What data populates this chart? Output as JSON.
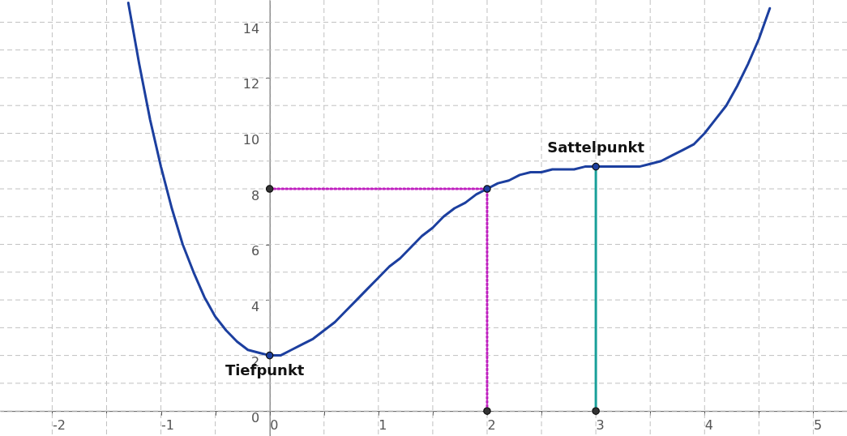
{
  "chart_data": {
    "type": "line",
    "xlim": [
      -2.48,
      5.31
    ],
    "ylim": [
      -0.9,
      14.8
    ],
    "xticks": [
      -2,
      {
        "value": -1.5,
        "label": null
      },
      -1,
      {
        "value": -0.5,
        "label": null
      },
      0,
      {
        "value": 0.5,
        "label": null
      },
      1,
      {
        "value": 1.5,
        "label": null
      },
      2,
      {
        "value": 2.5,
        "label": null
      },
      3,
      {
        "value": 3.5,
        "label": null
      },
      4,
      {
        "value": 4.5,
        "label": null
      },
      5
    ],
    "yticks": [
      0,
      {
        "value": 1,
        "label": null
      },
      2,
      {
        "value": 3,
        "label": null
      },
      4,
      {
        "value": 5,
        "label": null
      },
      6,
      {
        "value": 7,
        "label": null
      },
      8,
      {
        "value": 9,
        "label": null
      },
      10,
      {
        "value": 11,
        "label": null
      },
      12,
      {
        "value": 13,
        "label": null
      },
      14
    ],
    "grid": true,
    "marker": "none",
    "line_style": "solid",
    "series": [
      {
        "color": "#1c3f9f",
        "x": [
          -1.3,
          -1.2,
          -1.1,
          -1.0,
          -0.9,
          -0.8,
          -0.7,
          -0.6,
          -0.5,
          -0.4,
          -0.3,
          -0.2,
          -0.1,
          0,
          0.1,
          0.2,
          0.3,
          0.4,
          0.5,
          0.6,
          0.7,
          0.8,
          0.9,
          1.0,
          1.1,
          1.2,
          1.3,
          1.4,
          1.5,
          1.6,
          1.7,
          1.8,
          1.9,
          2.0,
          2.1,
          2.2,
          2.3,
          2.4,
          2.5,
          2.6,
          2.7,
          2.8,
          2.9,
          3.0,
          3.1,
          3.2,
          3.3,
          3.4,
          3.5,
          3.6,
          3.7,
          3.8,
          3.9,
          4.0,
          4.1,
          4.2,
          4.3,
          4.4,
          4.5,
          4.6
        ],
        "values": [
          14.7,
          12.5,
          10.5,
          8.8,
          7.3,
          6.0,
          5.0,
          4.1,
          3.4,
          2.9,
          2.5,
          2.2,
          2.1,
          2.0,
          2.0,
          2.2,
          2.4,
          2.6,
          2.9,
          3.2,
          3.6,
          4.0,
          4.4,
          4.8,
          5.2,
          5.5,
          5.9,
          6.3,
          6.6,
          7.0,
          7.3,
          7.5,
          7.8,
          8.0,
          8.2,
          8.3,
          8.5,
          8.6,
          8.6,
          8.7,
          8.7,
          8.7,
          8.8,
          8.8,
          8.8,
          8.8,
          8.8,
          8.8,
          8.9,
          9.0,
          9.2,
          9.4,
          9.6,
          10.0,
          10.5,
          11.0,
          11.7,
          12.5,
          13.4,
          14.5
        ]
      },
      {
        "color": "#c020c0",
        "line_style": "dotted",
        "x": [
          0,
          2,
          2
        ],
        "values": [
          8,
          8,
          0
        ]
      },
      {
        "color": "#1aa09a",
        "x": [
          3,
          3
        ],
        "values": [
          0,
          8.8
        ]
      },
      {
        "type": "scatter",
        "marker": "circle",
        "x": [
          0,
          2,
          3,
          0,
          2,
          3
        ],
        "values": [
          2.0,
          8,
          8.8,
          8,
          0,
          0
        ],
        "colors": [
          "#1c3f9f",
          "#1c3f9f",
          "#1c3f9f",
          "#333333",
          "#333333",
          "#333333"
        ]
      }
    ],
    "annotations": [
      {
        "text": "Tiefpunkt",
        "x": 0,
        "y": 2.0
      },
      {
        "text": "Sattelpunkt",
        "x": 3,
        "y": 8.8
      }
    ]
  }
}
